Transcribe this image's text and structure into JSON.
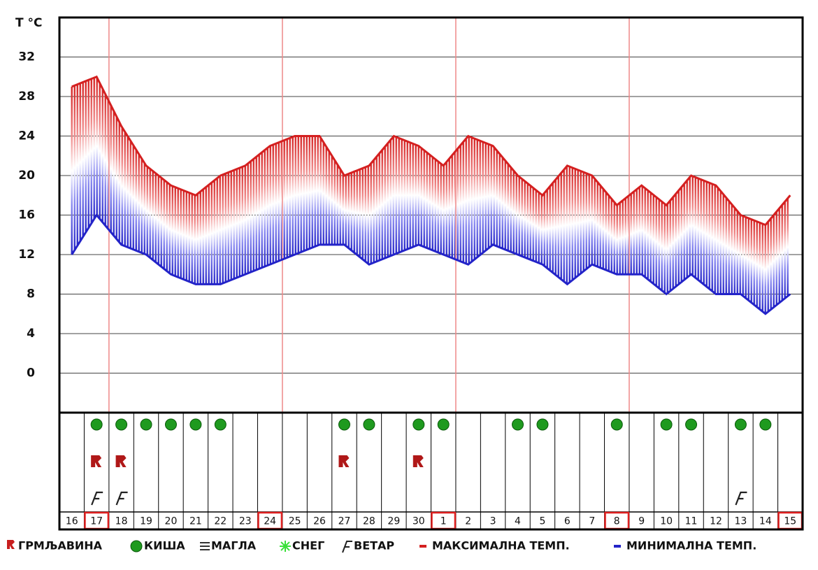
{
  "chart_data": {
    "type": "line",
    "y_label": "T °C",
    "categories": [
      "16",
      "17",
      "18",
      "19",
      "20",
      "21",
      "22",
      "23",
      "24",
      "25",
      "26",
      "27",
      "28",
      "29",
      "30",
      "1",
      "2",
      "3",
      "4",
      "5",
      "6",
      "7",
      "8",
      "9",
      "10",
      "11",
      "12",
      "13",
      "14",
      "15"
    ],
    "series": [
      {
        "name": "МАКСИМАЛНА ТЕМП.",
        "color": "#d42020",
        "values": [
          29,
          30,
          25,
          21,
          19,
          18,
          20,
          21,
          23,
          24,
          24,
          20,
          21,
          24,
          23,
          21,
          24,
          23,
          20,
          18,
          21,
          20,
          17,
          19,
          17,
          20,
          19,
          16,
          15,
          18
        ]
      },
      {
        "name": "МИНИМАЛНА ТЕМП.",
        "color": "#2323c8",
        "values": [
          12,
          16,
          13,
          12,
          10,
          9,
          9,
          10,
          11,
          12,
          13,
          13,
          11,
          12,
          13,
          12,
          11,
          13,
          12,
          11,
          9,
          11,
          10,
          10,
          8,
          10,
          8,
          8,
          6,
          8
        ]
      }
    ],
    "ylim": [
      -4,
      36
    ],
    "yticks": [
      0,
      4,
      8,
      12,
      16,
      20,
      24,
      28,
      32
    ],
    "grid": true,
    "rain": [
      false,
      true,
      true,
      true,
      true,
      true,
      true,
      false,
      false,
      false,
      false,
      true,
      true,
      false,
      true,
      true,
      false,
      false,
      true,
      true,
      false,
      false,
      true,
      false,
      true,
      true,
      false,
      true,
      true,
      false
    ],
    "thunder": [
      false,
      true,
      true,
      false,
      false,
      false,
      false,
      false,
      false,
      false,
      false,
      true,
      false,
      false,
      true,
      false,
      false,
      false,
      false,
      false,
      false,
      false,
      false,
      false,
      false,
      false,
      false,
      false,
      false,
      false
    ],
    "wind": [
      false,
      true,
      true,
      false,
      false,
      false,
      false,
      false,
      false,
      false,
      false,
      false,
      false,
      false,
      false,
      false,
      false,
      false,
      false,
      false,
      false,
      false,
      false,
      false,
      false,
      false,
      false,
      true,
      false,
      false
    ],
    "legend": {
      "thunder": "ГРМЉАВИНА",
      "rain": "КИША",
      "fog": "МАГЛА",
      "snow": "СНЕГ",
      "wind": "ВЕТАР"
    }
  }
}
